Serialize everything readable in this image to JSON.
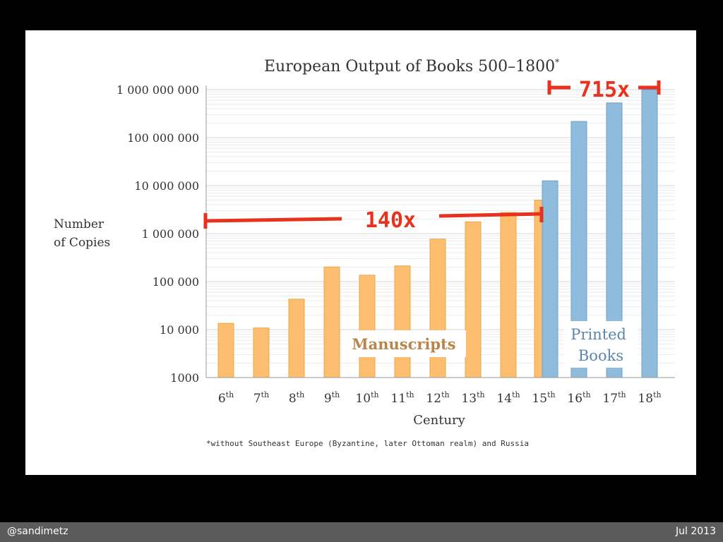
{
  "slide": {
    "author": "@sandimetz",
    "date": "Jul 2013"
  },
  "chart_data": {
    "type": "bar",
    "title": "European Output of Books 500–1800",
    "title_marker": "*",
    "ylabel_lines": [
      "Number",
      "of Copies"
    ],
    "xlabel": "Century",
    "yscale": "log",
    "ylim": [
      1000,
      1000000000
    ],
    "ytick_labels": [
      "1000",
      "10 000",
      "100 000",
      "1 000 000",
      "10 000 000",
      "100 000 000",
      "1 000 000 000"
    ],
    "categories": [
      {
        "num": "6",
        "sup": "th"
      },
      {
        "num": "7",
        "sup": "th"
      },
      {
        "num": "8",
        "sup": "th"
      },
      {
        "num": "9",
        "sup": "th"
      },
      {
        "num": "10",
        "sup": "th"
      },
      {
        "num": "11",
        "sup": "th"
      },
      {
        "num": "12",
        "sup": "th"
      },
      {
        "num": "13",
        "sup": "th"
      },
      {
        "num": "14",
        "sup": "th"
      },
      {
        "num": "15",
        "sup": "th"
      },
      {
        "num": "16",
        "sup": "th"
      },
      {
        "num": "17",
        "sup": "th"
      },
      {
        "num": "18",
        "sup": "th"
      }
    ],
    "series": [
      {
        "name": "Manuscripts",
        "color": "#fdbf6f",
        "stroke": "#e8a54e",
        "values": [
          13500,
          10800,
          43000,
          202000,
          136000,
          212000,
          768000,
          1760000,
          2750000,
          4990000,
          null,
          null,
          null
        ]
      },
      {
        "name": "Printed Books",
        "name_lines": [
          "Printed",
          "Books"
        ],
        "color": "#8fbcdd",
        "stroke": "#6f9fc4",
        "values": [
          null,
          null,
          null,
          null,
          null,
          null,
          null,
          null,
          null,
          12600000,
          217000000,
          529000000,
          1000000000
        ]
      }
    ],
    "grid": "horizontal",
    "footnote": "*without Southeast Europe (Byzantine, later Ottoman realm) and Russia",
    "annotations": [
      {
        "text": "140x",
        "color": "#e8321e"
      },
      {
        "text": "715x",
        "color": "#e8321e"
      }
    ]
  }
}
